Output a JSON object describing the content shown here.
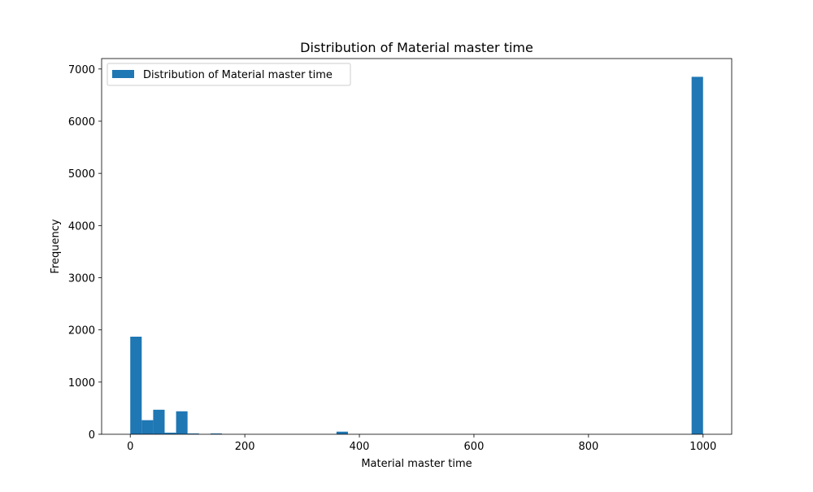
{
  "chart_data": {
    "type": "bar",
    "title": "Distribution of Material master time",
    "xlabel": "Material master time",
    "ylabel": "Frequency",
    "xlim": [
      -50,
      1050
    ],
    "ylim": [
      0,
      7200
    ],
    "xticks": [
      0,
      200,
      400,
      600,
      800,
      1000
    ],
    "yticks": [
      0,
      1000,
      2000,
      3000,
      4000,
      5000,
      6000,
      7000
    ],
    "bin_width": 20,
    "legend": {
      "placement": "top-left"
    },
    "grid": false,
    "series": [
      {
        "name": "Distribution of Material master time",
        "color": "#1f77b4",
        "bins": [
          {
            "x0": 0,
            "value": 1870
          },
          {
            "x0": 20,
            "value": 270
          },
          {
            "x0": 40,
            "value": 470
          },
          {
            "x0": 60,
            "value": 30
          },
          {
            "x0": 80,
            "value": 440
          },
          {
            "x0": 100,
            "value": 15
          },
          {
            "x0": 140,
            "value": 15
          },
          {
            "x0": 360,
            "value": 50
          },
          {
            "x0": 980,
            "value": 6850
          }
        ]
      }
    ]
  }
}
